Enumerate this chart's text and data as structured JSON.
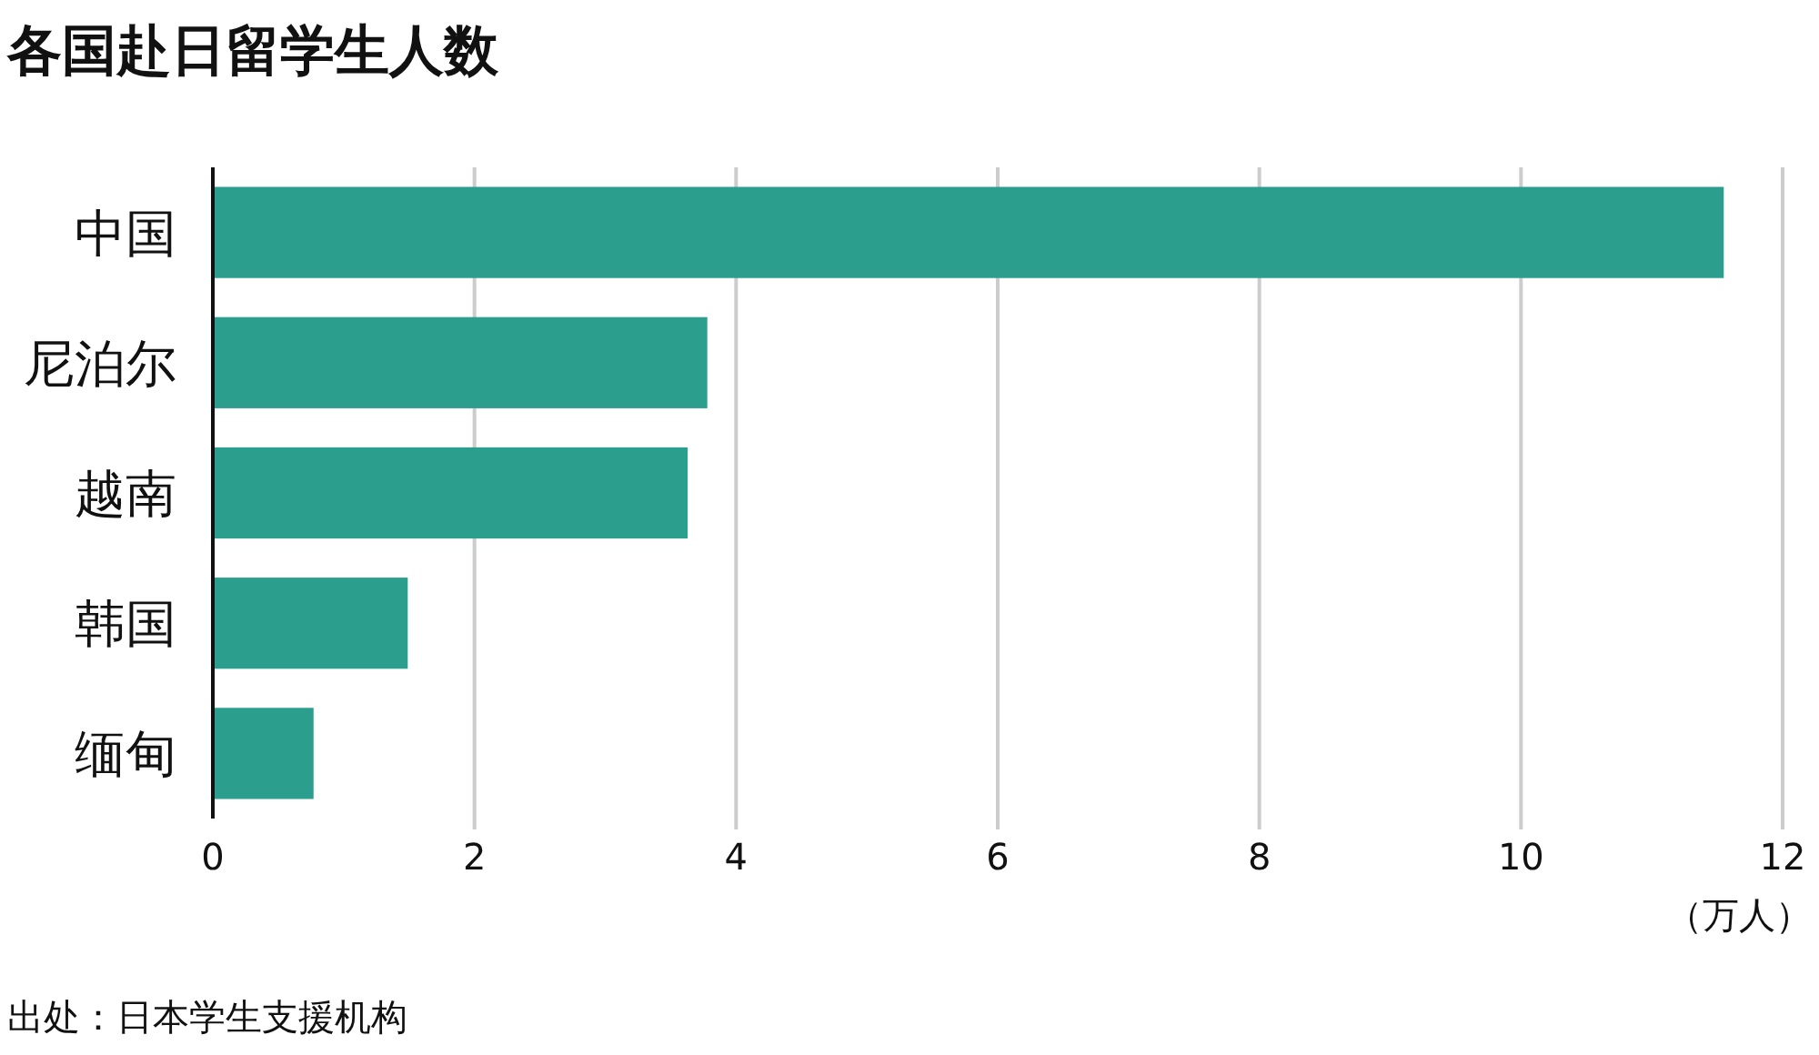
{
  "chart_data": {
    "type": "bar",
    "orientation": "horizontal",
    "title": "各国赴日留学生人数",
    "xlabel": "（万人）",
    "categories": [
      "中国",
      "尼泊尔",
      "越南",
      "韩国",
      "缅甸"
    ],
    "values": [
      11.55,
      3.78,
      3.63,
      1.49,
      0.77
    ],
    "color": "#2c9e8e",
    "xlim": [
      0,
      12
    ],
    "xticks": [
      0,
      2,
      4,
      6,
      8,
      10,
      12
    ],
    "grid": "x",
    "annotations": [
      "出处：日本学生支援机构"
    ]
  }
}
